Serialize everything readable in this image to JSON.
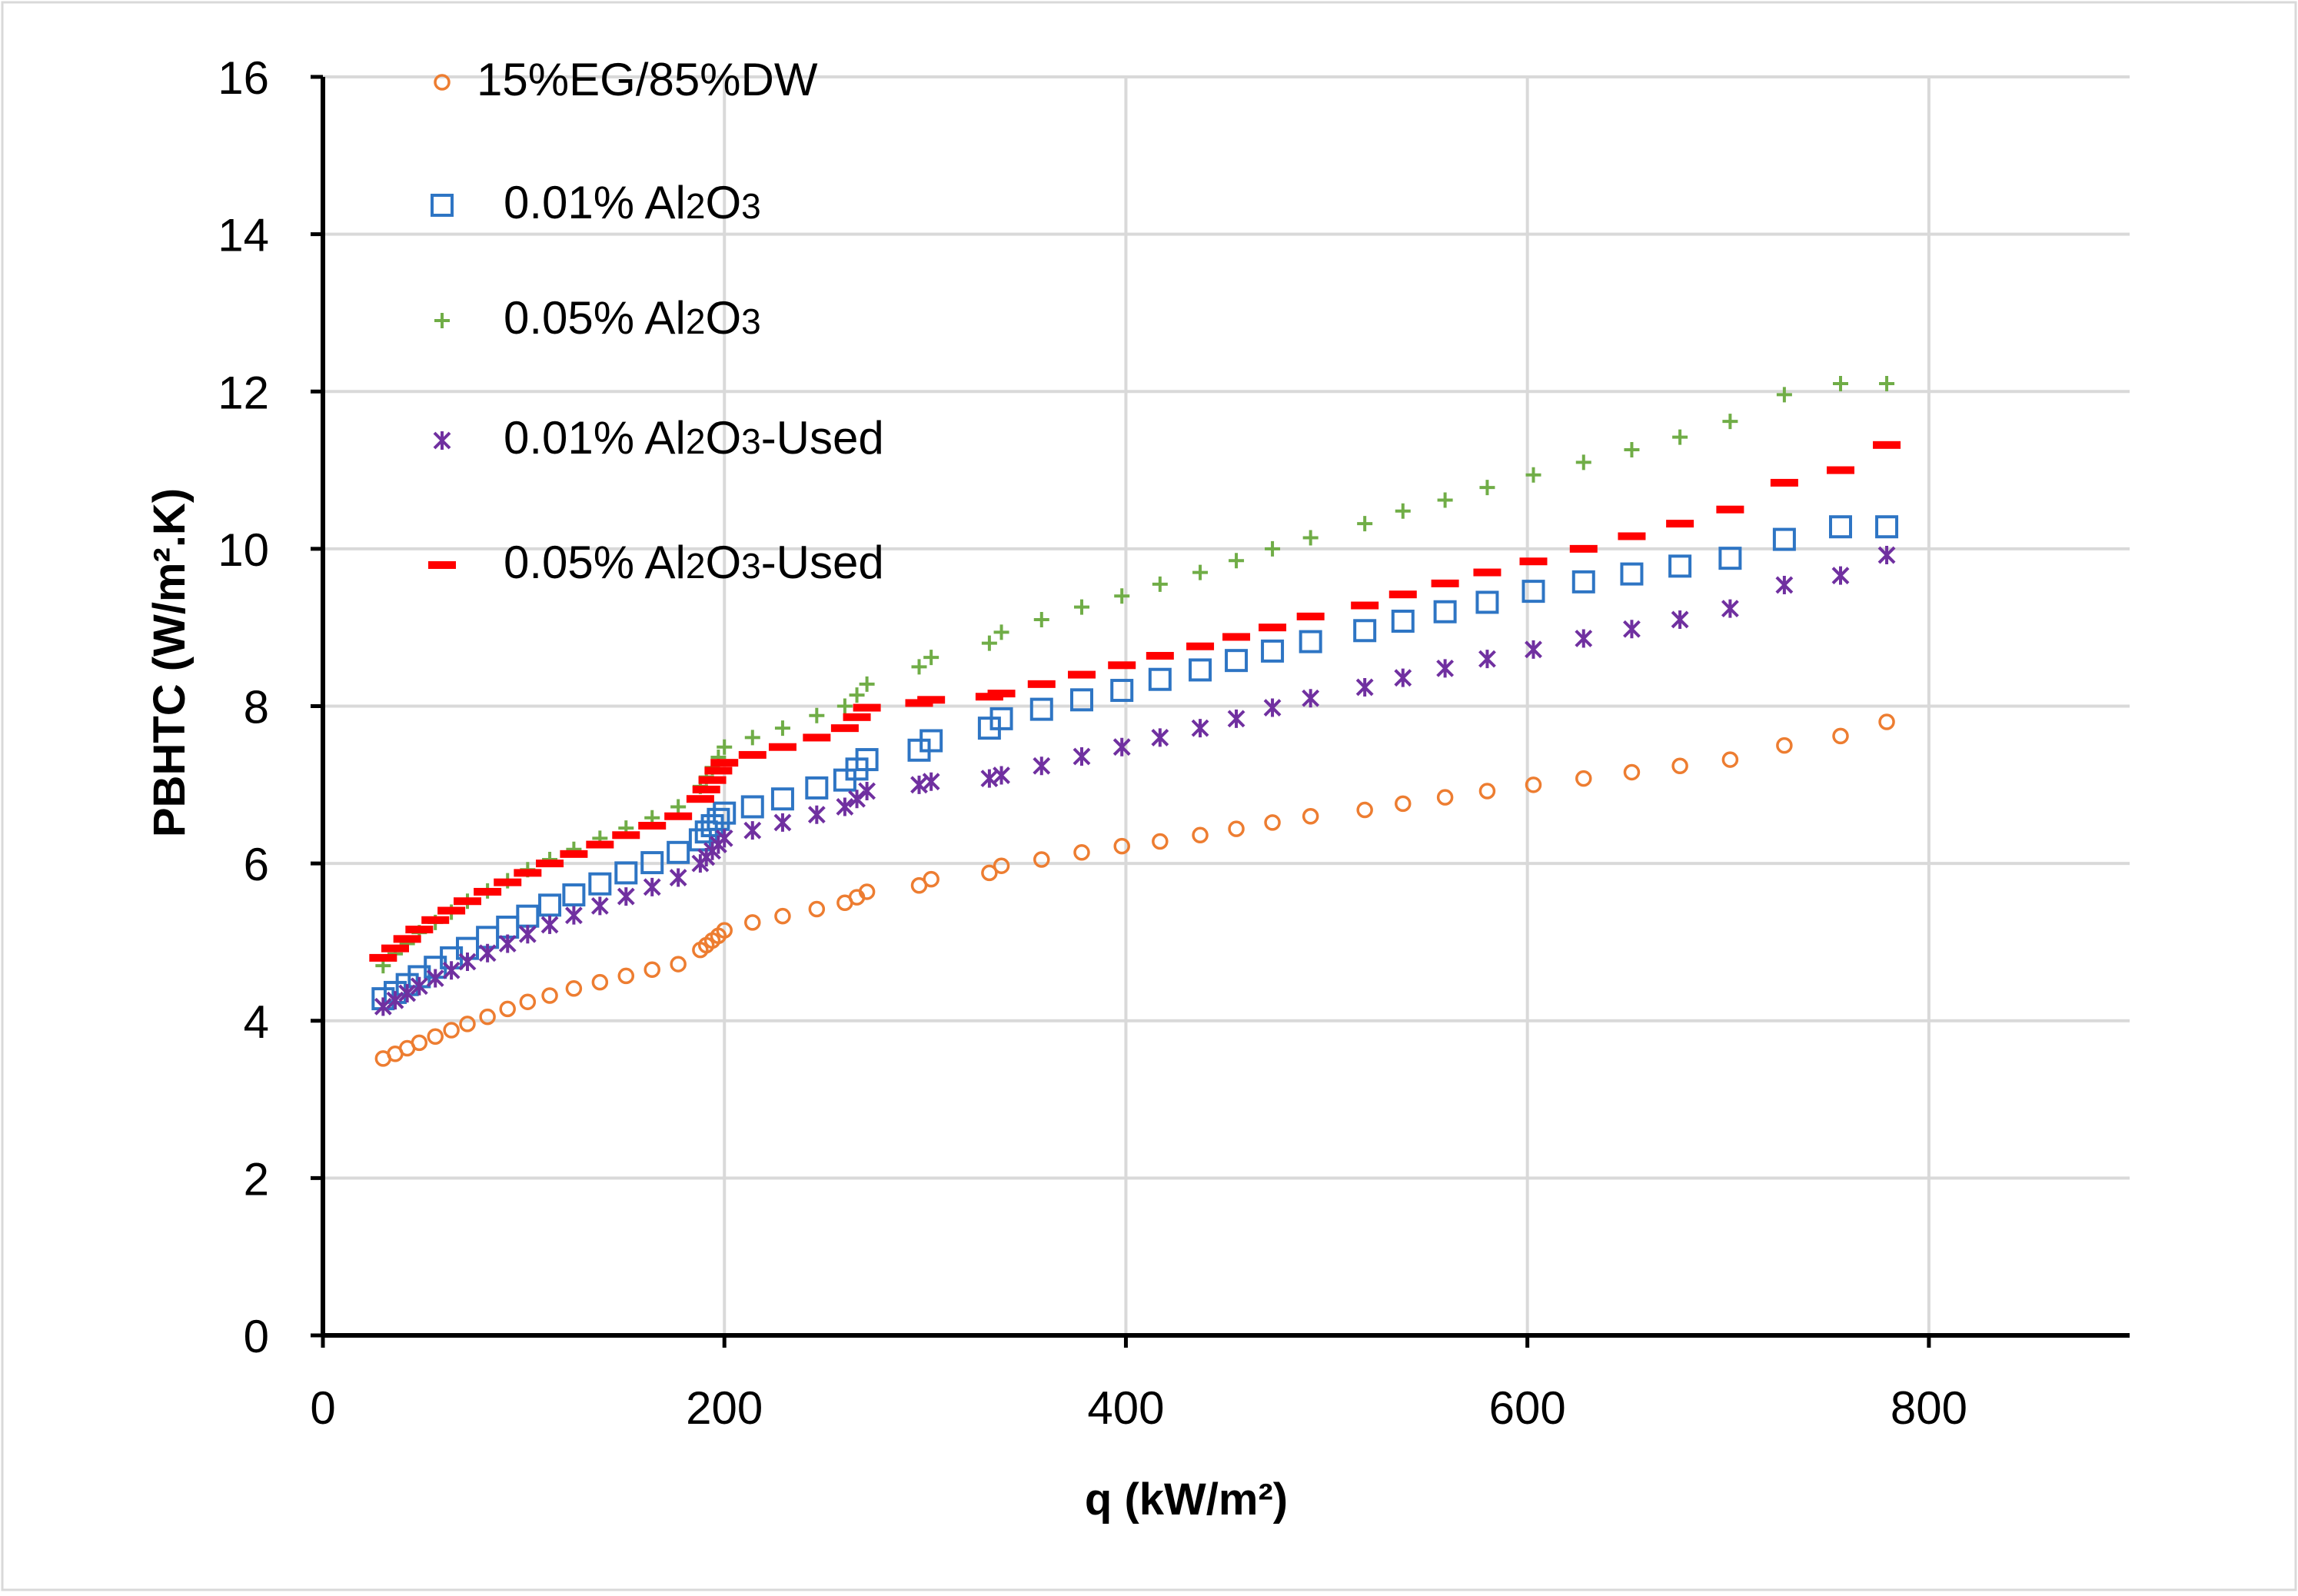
{
  "chart_data": {
    "type": "scatter",
    "title": "",
    "xlabel": "q (kW/m²)",
    "ylabel": "PBHTC (W/m².K)",
    "xlim": [
      0,
      900
    ],
    "ylim": [
      0,
      16
    ],
    "x_ticks": [
      0,
      200,
      400,
      600,
      800
    ],
    "y_ticks": [
      0,
      2,
      4,
      6,
      8,
      10,
      12,
      14,
      16
    ],
    "grid": true,
    "legend_position": "top-left",
    "series": [
      {
        "name": "15%EG/85%DW",
        "legend_parts": [
          "15%EG/85%DW"
        ],
        "marker": "circle",
        "color": "#ED7D31",
        "points": [
          [
            30,
            3.52
          ],
          [
            36,
            3.58
          ],
          [
            42,
            3.65
          ],
          [
            48,
            3.72
          ],
          [
            56,
            3.8
          ],
          [
            64,
            3.88
          ],
          [
            72,
            3.96
          ],
          [
            82,
            4.05
          ],
          [
            92,
            4.15
          ],
          [
            102,
            4.24
          ],
          [
            113,
            4.32
          ],
          [
            125,
            4.41
          ],
          [
            138,
            4.49
          ],
          [
            151,
            4.57
          ],
          [
            164,
            4.65
          ],
          [
            177,
            4.72
          ],
          [
            188,
            4.9
          ],
          [
            191,
            4.96
          ],
          [
            194,
            5.02
          ],
          [
            197,
            5.08
          ],
          [
            200,
            5.15
          ],
          [
            214,
            5.25
          ],
          [
            229,
            5.33
          ],
          [
            246,
            5.42
          ],
          [
            260,
            5.5
          ],
          [
            266,
            5.57
          ],
          [
            271,
            5.64
          ],
          [
            297,
            5.72
          ],
          [
            303,
            5.8
          ],
          [
            332,
            5.88
          ],
          [
            338,
            5.97
          ],
          [
            358,
            6.05
          ],
          [
            378,
            6.14
          ],
          [
            398,
            6.22
          ],
          [
            417,
            6.28
          ],
          [
            437,
            6.36
          ],
          [
            455,
            6.44
          ],
          [
            473,
            6.52
          ],
          [
            492,
            6.6
          ],
          [
            519,
            6.68
          ],
          [
            538,
            6.76
          ],
          [
            559,
            6.84
          ],
          [
            580,
            6.92
          ],
          [
            603,
            7.0
          ],
          [
            628,
            7.08
          ],
          [
            652,
            7.16
          ],
          [
            676,
            7.24
          ],
          [
            701,
            7.32
          ],
          [
            728,
            7.5
          ],
          [
            756,
            7.62
          ],
          [
            779,
            7.8
          ]
        ]
      },
      {
        "name": "0.01% Al2O3",
        "legend_parts": [
          "0.01% Al",
          "2",
          "O",
          "3"
        ],
        "marker": "square",
        "color": "#2E75C4",
        "points": [
          [
            30,
            4.28
          ],
          [
            36,
            4.36
          ],
          [
            42,
            4.46
          ],
          [
            48,
            4.56
          ],
          [
            56,
            4.68
          ],
          [
            64,
            4.8
          ],
          [
            72,
            4.92
          ],
          [
            82,
            5.06
          ],
          [
            92,
            5.19
          ],
          [
            102,
            5.33
          ],
          [
            113,
            5.47
          ],
          [
            125,
            5.6
          ],
          [
            138,
            5.74
          ],
          [
            151,
            5.88
          ],
          [
            164,
            6.01
          ],
          [
            177,
            6.14
          ],
          [
            188,
            6.3
          ],
          [
            191,
            6.4
          ],
          [
            194,
            6.48
          ],
          [
            197,
            6.56
          ],
          [
            200,
            6.64
          ],
          [
            214,
            6.72
          ],
          [
            229,
            6.82
          ],
          [
            246,
            6.96
          ],
          [
            260,
            7.06
          ],
          [
            266,
            7.2
          ],
          [
            271,
            7.32
          ],
          [
            297,
            7.44
          ],
          [
            303,
            7.56
          ],
          [
            332,
            7.72
          ],
          [
            338,
            7.84
          ],
          [
            358,
            7.96
          ],
          [
            378,
            8.08
          ],
          [
            398,
            8.2
          ],
          [
            417,
            8.34
          ],
          [
            437,
            8.46
          ],
          [
            455,
            8.58
          ],
          [
            473,
            8.7
          ],
          [
            492,
            8.82
          ],
          [
            519,
            8.96
          ],
          [
            538,
            9.08
          ],
          [
            559,
            9.2
          ],
          [
            580,
            9.32
          ],
          [
            603,
            9.46
          ],
          [
            628,
            9.58
          ],
          [
            652,
            9.68
          ],
          [
            676,
            9.78
          ],
          [
            701,
            9.88
          ],
          [
            728,
            10.12
          ],
          [
            756,
            10.28
          ],
          [
            779,
            10.28
          ]
        ]
      },
      {
        "name": "0.05% Al2O3",
        "legend_parts": [
          "0.05% Al",
          "2",
          "O",
          "3"
        ],
        "marker": "plus",
        "color": "#70AD47",
        "points": [
          [
            30,
            4.7
          ],
          [
            36,
            4.85
          ],
          [
            42,
            4.98
          ],
          [
            48,
            5.12
          ],
          [
            56,
            5.25
          ],
          [
            64,
            5.38
          ],
          [
            72,
            5.52
          ],
          [
            82,
            5.65
          ],
          [
            92,
            5.78
          ],
          [
            102,
            5.92
          ],
          [
            113,
            6.05
          ],
          [
            125,
            6.18
          ],
          [
            138,
            6.32
          ],
          [
            151,
            6.45
          ],
          [
            164,
            6.58
          ],
          [
            177,
            6.72
          ],
          [
            188,
            6.98
          ],
          [
            191,
            7.1
          ],
          [
            194,
            7.22
          ],
          [
            197,
            7.35
          ],
          [
            200,
            7.48
          ],
          [
            214,
            7.6
          ],
          [
            229,
            7.72
          ],
          [
            246,
            7.88
          ],
          [
            260,
            8.0
          ],
          [
            266,
            8.14
          ],
          [
            271,
            8.28
          ],
          [
            297,
            8.5
          ],
          [
            303,
            8.62
          ],
          [
            332,
            8.8
          ],
          [
            338,
            8.94
          ],
          [
            358,
            9.1
          ],
          [
            378,
            9.26
          ],
          [
            398,
            9.4
          ],
          [
            417,
            9.55
          ],
          [
            437,
            9.7
          ],
          [
            455,
            9.85
          ],
          [
            473,
            10.0
          ],
          [
            492,
            10.14
          ],
          [
            519,
            10.32
          ],
          [
            538,
            10.48
          ],
          [
            559,
            10.62
          ],
          [
            580,
            10.78
          ],
          [
            603,
            10.94
          ],
          [
            628,
            11.1
          ],
          [
            652,
            11.26
          ],
          [
            676,
            11.42
          ],
          [
            701,
            11.62
          ],
          [
            728,
            11.96
          ],
          [
            756,
            12.1
          ],
          [
            779,
            12.1
          ]
        ]
      },
      {
        "name": "0.01% Al2O3-Used",
        "legend_parts": [
          "0.01% Al",
          "2",
          "O",
          "3",
          "-Used"
        ],
        "marker": "star",
        "color": "#7030A0",
        "points": [
          [
            30,
            4.18
          ],
          [
            36,
            4.26
          ],
          [
            42,
            4.35
          ],
          [
            48,
            4.44
          ],
          [
            56,
            4.54
          ],
          [
            64,
            4.64
          ],
          [
            72,
            4.75
          ],
          [
            82,
            4.86
          ],
          [
            92,
            4.98
          ],
          [
            102,
            5.1
          ],
          [
            113,
            5.22
          ],
          [
            125,
            5.34
          ],
          [
            138,
            5.46
          ],
          [
            151,
            5.58
          ],
          [
            164,
            5.7
          ],
          [
            177,
            5.82
          ],
          [
            188,
            6.0
          ],
          [
            191,
            6.08
          ],
          [
            194,
            6.16
          ],
          [
            197,
            6.24
          ],
          [
            200,
            6.32
          ],
          [
            214,
            6.42
          ],
          [
            229,
            6.52
          ],
          [
            246,
            6.62
          ],
          [
            260,
            6.72
          ],
          [
            266,
            6.82
          ],
          [
            271,
            6.92
          ],
          [
            297,
            7.0
          ],
          [
            303,
            7.04
          ],
          [
            332,
            7.08
          ],
          [
            338,
            7.12
          ],
          [
            358,
            7.24
          ],
          [
            378,
            7.36
          ],
          [
            398,
            7.48
          ],
          [
            417,
            7.6
          ],
          [
            437,
            7.72
          ],
          [
            455,
            7.84
          ],
          [
            473,
            7.98
          ],
          [
            492,
            8.1
          ],
          [
            519,
            8.24
          ],
          [
            538,
            8.36
          ],
          [
            559,
            8.48
          ],
          [
            580,
            8.6
          ],
          [
            603,
            8.72
          ],
          [
            628,
            8.86
          ],
          [
            652,
            8.98
          ],
          [
            676,
            9.1
          ],
          [
            701,
            9.24
          ],
          [
            728,
            9.54
          ],
          [
            756,
            9.66
          ],
          [
            779,
            9.92
          ]
        ]
      },
      {
        "name": "0.05% Al2O3-Used",
        "legend_parts": [
          "0.05% Al",
          "2",
          "O",
          "3",
          "-Used"
        ],
        "marker": "dash",
        "color": "#FF0000",
        "points": [
          [
            30,
            4.8
          ],
          [
            36,
            4.92
          ],
          [
            42,
            5.04
          ],
          [
            48,
            5.16
          ],
          [
            56,
            5.28
          ],
          [
            64,
            5.4
          ],
          [
            72,
            5.52
          ],
          [
            82,
            5.64
          ],
          [
            92,
            5.76
          ],
          [
            102,
            5.88
          ],
          [
            113,
            6.0
          ],
          [
            125,
            6.12
          ],
          [
            138,
            6.24
          ],
          [
            151,
            6.36
          ],
          [
            164,
            6.48
          ],
          [
            177,
            6.6
          ],
          [
            188,
            6.82
          ],
          [
            191,
            6.94
          ],
          [
            194,
            7.06
          ],
          [
            197,
            7.18
          ],
          [
            200,
            7.28
          ],
          [
            214,
            7.38
          ],
          [
            229,
            7.48
          ],
          [
            246,
            7.6
          ],
          [
            260,
            7.72
          ],
          [
            266,
            7.86
          ],
          [
            271,
            7.98
          ],
          [
            297,
            8.04
          ],
          [
            303,
            8.08
          ],
          [
            332,
            8.12
          ],
          [
            338,
            8.16
          ],
          [
            358,
            8.28
          ],
          [
            378,
            8.4
          ],
          [
            398,
            8.52
          ],
          [
            417,
            8.64
          ],
          [
            437,
            8.76
          ],
          [
            455,
            8.88
          ],
          [
            473,
            9.0
          ],
          [
            492,
            9.14
          ],
          [
            519,
            9.28
          ],
          [
            538,
            9.42
          ],
          [
            559,
            9.56
          ],
          [
            580,
            9.7
          ],
          [
            603,
            9.84
          ],
          [
            628,
            10.0
          ],
          [
            652,
            10.16
          ],
          [
            676,
            10.32
          ],
          [
            701,
            10.5
          ],
          [
            728,
            10.84
          ],
          [
            756,
            11.0
          ],
          [
            779,
            11.32
          ]
        ]
      }
    ]
  }
}
